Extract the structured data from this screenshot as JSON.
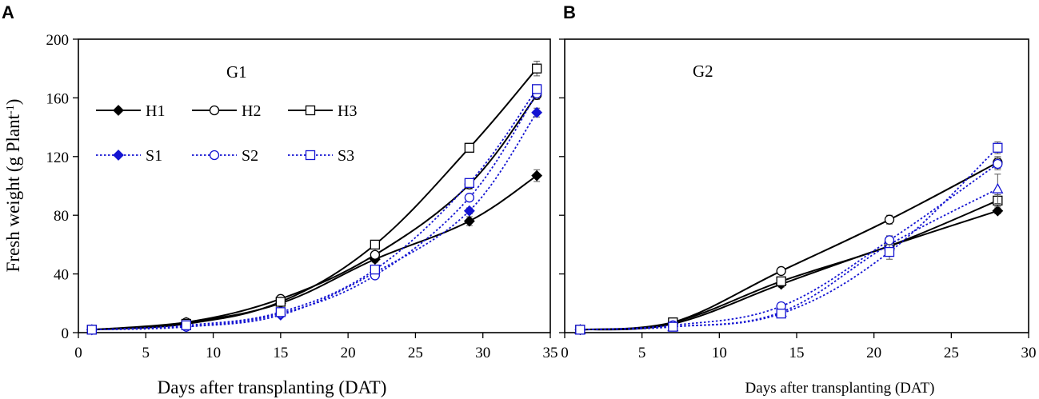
{
  "colors": {
    "black_series": "#000000",
    "blue_series": "#1414d2",
    "background": "#ffffff"
  },
  "chart_data": [
    {
      "panel_label": "A",
      "type": "line",
      "title": "G1",
      "xlabel": "Days after transplanting (DAT)",
      "ylabel": "Fresh weight (g Plant",
      "ylabel_sup": "-1",
      "ylabel_close": ")",
      "xlim": [
        0,
        35
      ],
      "ylim": [
        0,
        200
      ],
      "xticks": [
        0,
        5,
        10,
        15,
        20,
        25,
        30,
        35
      ],
      "yticks": [
        0,
        40,
        80,
        120,
        160,
        200
      ],
      "x": [
        1,
        8,
        15,
        22,
        29,
        34
      ],
      "grid": false,
      "legend_position": "top-left",
      "series": [
        {
          "name": "H1",
          "group": "H",
          "marker": "diamond-filled",
          "values": [
            2,
            7,
            20,
            50,
            76,
            107
          ],
          "errors": [
            0.5,
            1,
            1.5,
            2,
            3,
            4
          ]
        },
        {
          "name": "H2",
          "group": "H",
          "marker": "circle-open",
          "values": [
            2,
            7,
            23,
            53,
            101,
            162
          ],
          "errors": [
            0.5,
            1,
            1.5,
            2,
            3,
            3
          ]
        },
        {
          "name": "H3",
          "group": "H",
          "marker": "square-open",
          "values": [
            2,
            6,
            21,
            60,
            126,
            180
          ],
          "errors": [
            0.5,
            1,
            1.5,
            2,
            3,
            5
          ]
        },
        {
          "name": "S1",
          "group": "S",
          "marker": "diamond-filled",
          "values": [
            2,
            4,
            12,
            41,
            83,
            150
          ],
          "errors": [
            0.5,
            1,
            1,
            2,
            2,
            3
          ]
        },
        {
          "name": "S2",
          "group": "S",
          "marker": "circle-open",
          "values": [
            2,
            4,
            13,
            39,
            92,
            163
          ],
          "errors": [
            0.5,
            1,
            1,
            2,
            2,
            3
          ]
        },
        {
          "name": "S3",
          "group": "S",
          "marker": "square-open",
          "values": [
            2,
            5,
            14,
            43,
            102,
            166
          ],
          "errors": [
            0.5,
            1,
            1,
            2,
            2,
            3
          ]
        }
      ]
    },
    {
      "panel_label": "B",
      "type": "line",
      "title": "G2",
      "xlabel": "Days after transplanting (DAT)",
      "ylabel": "",
      "xlim": [
        0,
        30
      ],
      "ylim": [
        0,
        200
      ],
      "xticks": [
        0,
        5,
        10,
        15,
        20,
        25,
        30
      ],
      "yticks": [
        0,
        40,
        80,
        120,
        160,
        200
      ],
      "x": [
        1,
        7,
        14,
        21,
        28
      ],
      "grid": false,
      "legend_position": "none",
      "series": [
        {
          "name": "H1",
          "group": "H",
          "marker": "diamond-filled",
          "values": [
            2,
            6,
            33,
            59,
            83
          ],
          "errors": [
            0.5,
            1,
            2,
            3,
            2
          ]
        },
        {
          "name": "H2",
          "group": "H",
          "marker": "circle-open",
          "values": [
            2,
            7,
            42,
            77,
            116
          ],
          "errors": [
            0.5,
            1,
            2,
            3,
            4
          ]
        },
        {
          "name": "H3",
          "group": "H",
          "marker": "square-open",
          "values": [
            2,
            7,
            35,
            59,
            90
          ],
          "errors": [
            0.5,
            1,
            2,
            3,
            4
          ]
        },
        {
          "name": "S1",
          "group": "S",
          "marker": "triangle-open",
          "values": [
            2,
            4,
            14,
            60,
            98
          ],
          "errors": [
            0.5,
            1,
            2,
            4,
            10
          ]
        },
        {
          "name": "S2",
          "group": "S",
          "marker": "circle-open",
          "values": [
            2,
            5,
            18,
            63,
            115
          ],
          "errors": [
            0.5,
            1,
            2,
            3,
            4
          ]
        },
        {
          "name": "S3",
          "group": "S",
          "marker": "square-open",
          "values": [
            2,
            4,
            13,
            55,
            126
          ],
          "errors": [
            0.5,
            1,
            2,
            5,
            4
          ]
        }
      ]
    }
  ]
}
